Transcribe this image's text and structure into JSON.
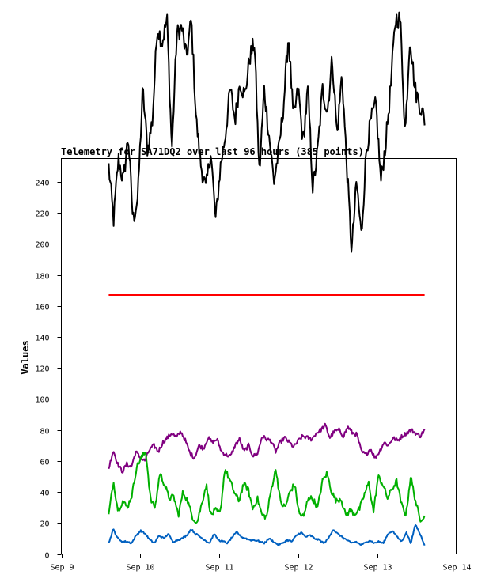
{
  "chart_data": {
    "type": "line",
    "title": "Telemetry for SA71DQ2 over last 96 hours (385 points)",
    "xlabel": "",
    "ylabel": "Values",
    "x_ticks": [
      "Sep 9",
      "Sep 10",
      "Sep 11",
      "Sep 12",
      "Sep 13",
      "Sep 14"
    ],
    "x_range_days": [
      9,
      14
    ],
    "x_data_range_days": [
      9.6,
      13.6
    ],
    "y_ticks": [
      0,
      20,
      40,
      60,
      80,
      100,
      120,
      140,
      160,
      180,
      200,
      220,
      240
    ],
    "ylim": [
      0,
      255
    ],
    "grid": false,
    "legend": "none",
    "series": [
      {
        "color": "#000000",
        "min": 193,
        "max": 350,
        "anchors": [
          250,
          215,
          255,
          240,
          270,
          215,
          230,
          300,
          260,
          280,
          340,
          330,
          345,
          260,
          335,
          340,
          320,
          345,
          280,
          250,
          235,
          260,
          215,
          250,
          270,
          300,
          280,
          305,
          295,
          320,
          330,
          245,
          300,
          270,
          240,
          260,
          290,
          335,
          280,
          300,
          265,
          300,
          235,
          260,
          300,
          285,
          320,
          270,
          310,
          250,
          195,
          240,
          205,
          260,
          280,
          290,
          240,
          265,
          300,
          345,
          345,
          270,
          335,
          300,
          290,
          280
        ]
      },
      {
        "color": "#ff0000",
        "min": 167,
        "max": 167,
        "anchors": [
          167,
          167
        ]
      },
      {
        "color": "#800080",
        "min": 51,
        "max": 84,
        "anchors": [
          55,
          67,
          58,
          53,
          58,
          56,
          66,
          62,
          60,
          67,
          70,
          66,
          72,
          75,
          78,
          75,
          79,
          73,
          65,
          62,
          70,
          68,
          75,
          72,
          74,
          66,
          64,
          63,
          70,
          74,
          66,
          70,
          63,
          65,
          76,
          74,
          73,
          66,
          72,
          75,
          72,
          69,
          73,
          76,
          75,
          74,
          78,
          80,
          83,
          75,
          79,
          80,
          76,
          82,
          78,
          77,
          66,
          64,
          68,
          62,
          66,
          72,
          70,
          75,
          73,
          76,
          78,
          80,
          78,
          76,
          80
        ]
      },
      {
        "color": "#00b000",
        "min": 20,
        "max": 67,
        "anchors": [
          25,
          47,
          28,
          34,
          30,
          38,
          56,
          62,
          66,
          35,
          30,
          52,
          45,
          36,
          37,
          25,
          40,
          34,
          24,
          20,
          32,
          45,
          25,
          28,
          26,
          55,
          48,
          40,
          34,
          45,
          42,
          29,
          36,
          25,
          24,
          42,
          55,
          33,
          30,
          40,
          45,
          26,
          24,
          37,
          35,
          30,
          47,
          52,
          40,
          34,
          36,
          25,
          28,
          26,
          29,
          38,
          46,
          27,
          50,
          45,
          36,
          42,
          47,
          32,
          25,
          50,
          35,
          22,
          25
        ]
      },
      {
        "color": "#0060c0",
        "min": 5,
        "max": 19,
        "anchors": [
          7,
          16,
          10,
          8,
          8,
          7,
          12,
          15,
          13,
          9,
          7,
          12,
          10,
          13,
          8,
          9,
          10,
          12,
          16,
          13,
          11,
          9,
          7,
          13,
          9,
          8,
          7,
          11,
          14,
          11,
          10,
          9,
          9,
          8,
          7,
          10,
          8,
          6,
          7,
          9,
          8,
          12,
          14,
          11,
          12,
          10,
          9,
          7,
          10,
          16,
          13,
          11,
          9,
          7,
          8,
          6,
          7,
          9,
          7,
          8,
          7,
          13,
          15,
          11,
          8,
          14,
          7,
          19,
          13,
          6
        ]
      }
    ]
  }
}
